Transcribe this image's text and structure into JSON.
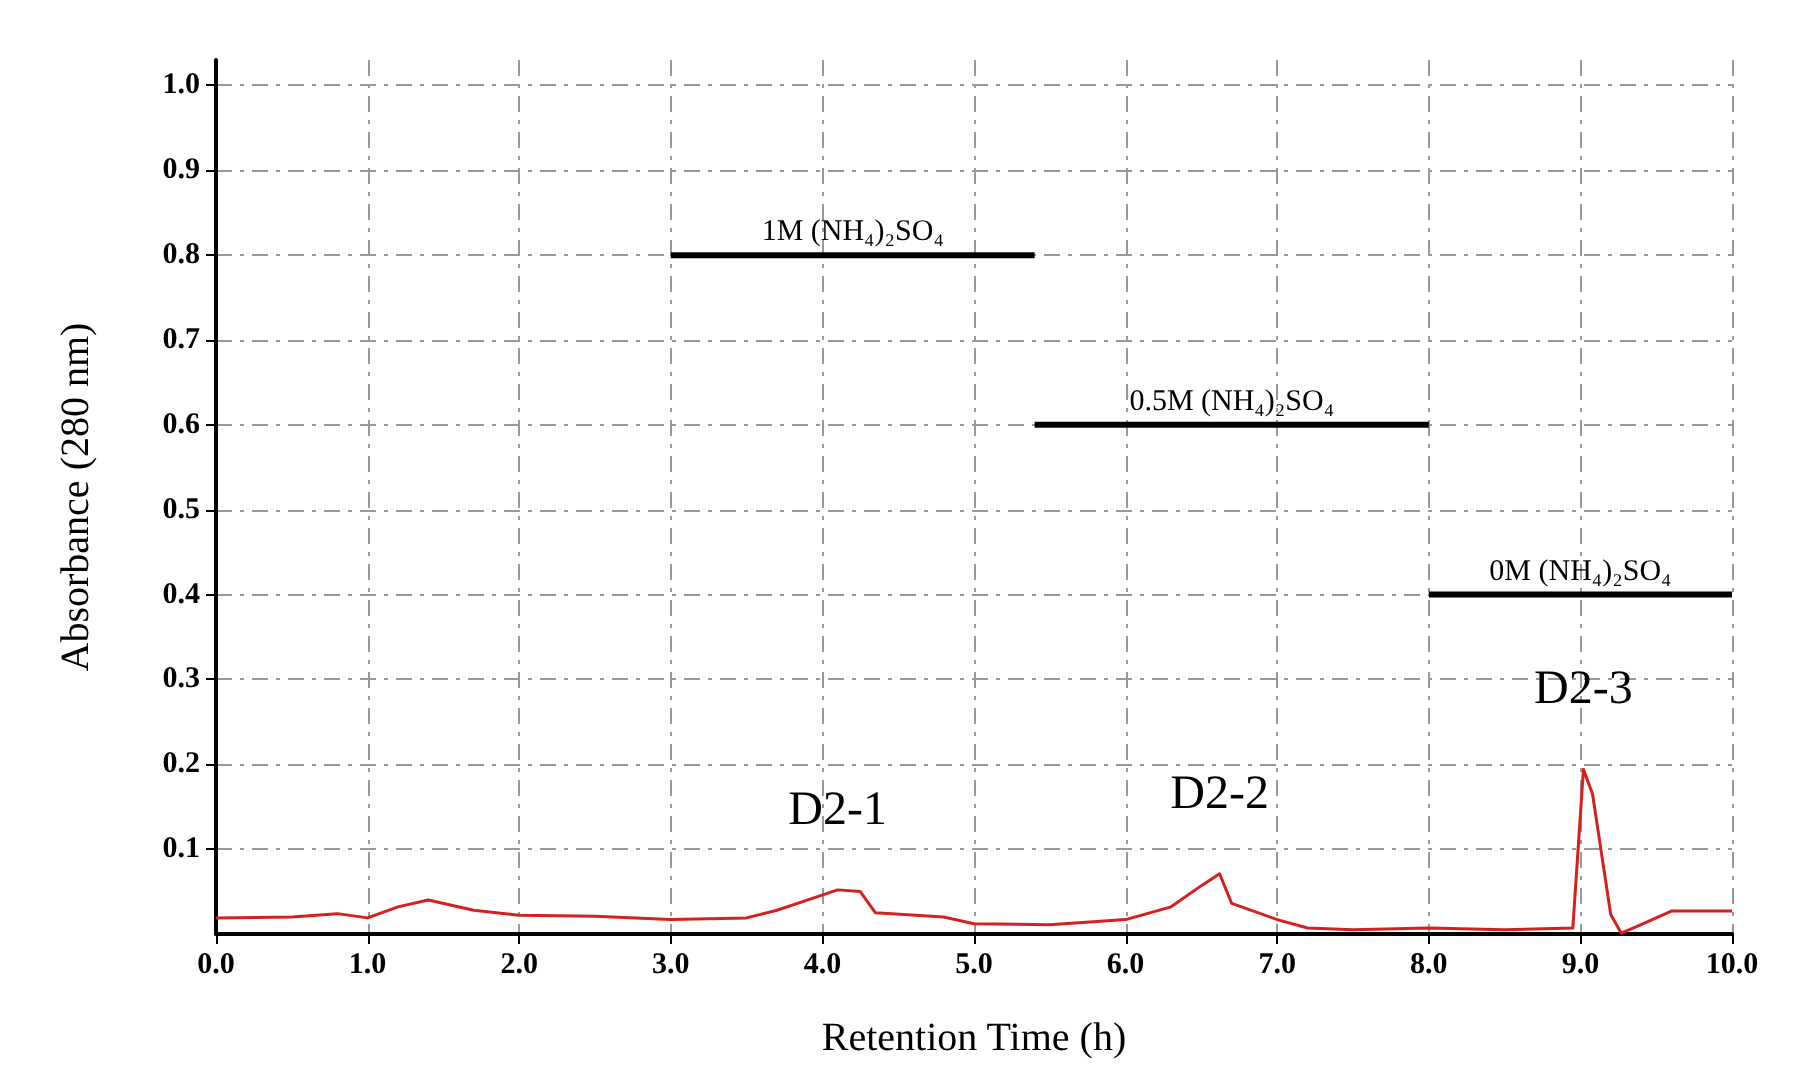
{
  "chart_data": {
    "type": "line",
    "xlabel": "Retention Time (h)",
    "ylabel": "Absorbance (280 nm)",
    "xlim": [
      0,
      10
    ],
    "ylim": [
      0,
      1.03
    ],
    "xticks": [
      {
        "value": 0,
        "label": "0.0"
      },
      {
        "value": 1,
        "label": "1.0"
      },
      {
        "value": 2,
        "label": "2.0"
      },
      {
        "value": 3,
        "label": "3.0"
      },
      {
        "value": 4,
        "label": "4.0"
      },
      {
        "value": 5,
        "label": "5.0"
      },
      {
        "value": 6,
        "label": "6.0"
      },
      {
        "value": 7,
        "label": "7.0"
      },
      {
        "value": 8,
        "label": "8.0"
      },
      {
        "value": 9,
        "label": "9.0"
      },
      {
        "value": 10,
        "label": "10.0"
      }
    ],
    "yticks": [
      0.1,
      0.2,
      0.3,
      0.4,
      0.5,
      0.6,
      0.7,
      0.8,
      0.9,
      {
        "value": 1,
        "label": "1.0"
      }
    ],
    "grid": true,
    "marker": "none",
    "series": [
      {
        "color": "#d42020",
        "x": [
          0,
          0.5,
          0.8,
          1.0,
          1.2,
          1.4,
          1.7,
          2.0,
          2.5,
          3.0,
          3.5,
          3.7,
          3.9,
          4.1,
          4.25,
          4.35,
          4.8,
          5.0,
          5.5,
          6.0,
          6.3,
          6.5,
          6.62,
          6.7,
          7.0,
          7.2,
          7.5,
          8.0,
          8.5,
          8.95,
          9.02,
          9.08,
          9.2,
          9.27,
          9.4,
          9.6,
          10.0
        ],
        "values": [
          0.019,
          0.02,
          0.024,
          0.019,
          0.032,
          0.04,
          0.028,
          0.022,
          0.021,
          0.017,
          0.019,
          0.028,
          0.04,
          0.052,
          0.05,
          0.025,
          0.02,
          0.012,
          0.011,
          0.017,
          0.032,
          0.057,
          0.071,
          0.036,
          0.017,
          0.007,
          0.005,
          0.007,
          0.005,
          0.007,
          0.194,
          0.165,
          0.023,
          0.001,
          0.011,
          0.027,
          0.027
        ]
      },
      {
        "color": "#000000",
        "x": [
          3.0,
          5.4
        ],
        "values": [
          0.8,
          0.8
        ]
      },
      {
        "color": "#000000",
        "x": [
          5.4,
          8.0
        ],
        "values": [
          0.6,
          0.6
        ]
      },
      {
        "color": "#000000",
        "x": [
          8.0,
          10.0
        ],
        "values": [
          0.4,
          0.4
        ]
      }
    ],
    "annotations": [
      {
        "text": "1M (NH₄)₂SO₄",
        "x": 4.2,
        "y": 0.8
      },
      {
        "text": "0.5M (NH₄)₂SO₄",
        "x": 6.7,
        "y": 0.6
      },
      {
        "text": "0M (NH₄)₂SO₄",
        "x": 9.0,
        "y": 0.4
      },
      {
        "text": "D2-1",
        "x": 4.1,
        "y": 0.052
      },
      {
        "text": "D2-2",
        "x": 6.62,
        "y": 0.071
      },
      {
        "text": "D2-3",
        "x": 9.02,
        "y": 0.194
      }
    ]
  }
}
